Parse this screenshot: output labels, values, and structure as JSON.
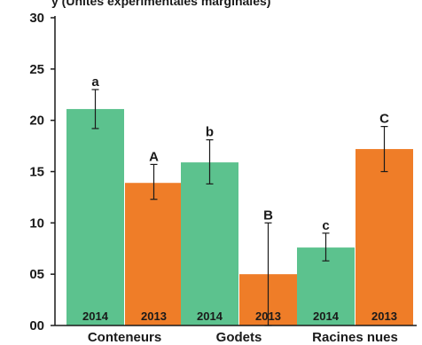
{
  "chart_data": {
    "type": "bar",
    "header_fragment": "y (Unités expérimentales marginales)",
    "categories": [
      "Conteneurs",
      "Godets",
      "Racines nues"
    ],
    "years": [
      "2014",
      "2013"
    ],
    "series": [
      {
        "name": "2014",
        "color": "#5cc28e",
        "values": [
          21.1,
          15.9,
          7.6
        ],
        "err_low": [
          19.2,
          13.8,
          6.3
        ],
        "err_high": [
          23.0,
          18.1,
          9.0
        ],
        "labels": [
          "a",
          "b",
          "c"
        ]
      },
      {
        "name": "2013",
        "color": "#ef7d28",
        "values": [
          13.9,
          5.0,
          17.2
        ],
        "err_low": [
          12.3,
          0.0,
          15.0
        ],
        "err_high": [
          15.7,
          10.0,
          19.4
        ],
        "labels": [
          "A",
          "B",
          "C"
        ]
      }
    ],
    "yticks": [
      "00",
      "05",
      "10",
      "15",
      "20",
      "25",
      "30"
    ],
    "ylim": [
      0,
      30
    ]
  }
}
